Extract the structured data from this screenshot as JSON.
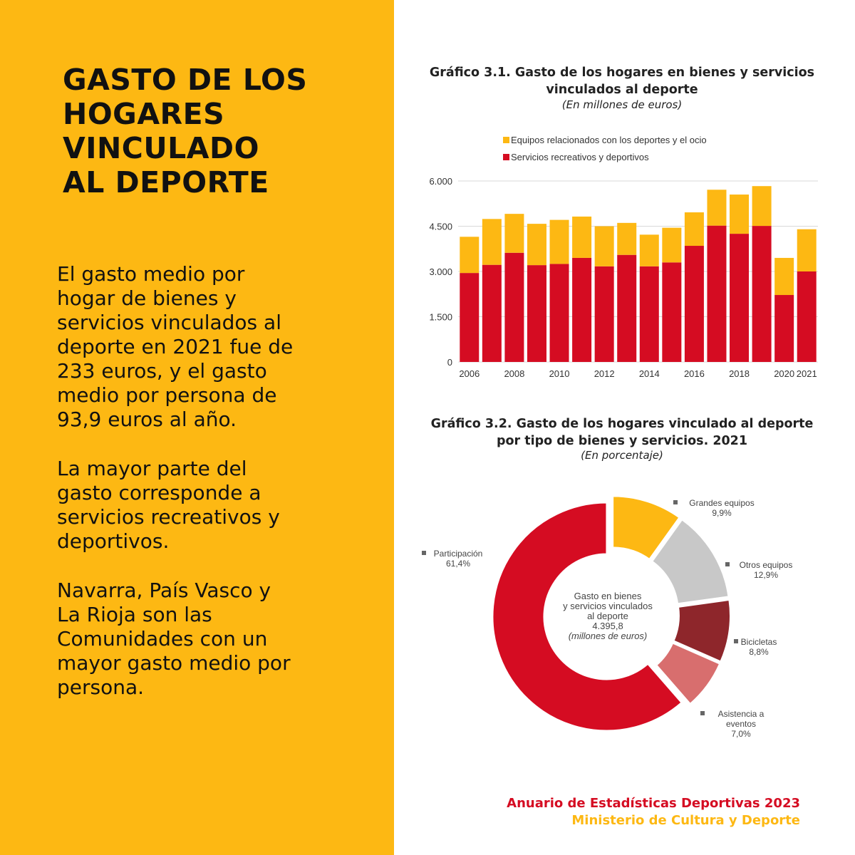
{
  "headline": "GASTO DE LOS\nHOGARES\nVINCULADO\nAL DEPORTE",
  "paragraphs": [
    "El gasto medio por\nhogar de bienes y\nservicios vinculados al\ndeporte en 2021 fue de\n233 euros, y el gasto\nmedio por persona de\n93,9 euros al año.",
    "La mayor parte del\ngasto corresponde a\nservicios recreativos y\ndeportivos.",
    "Navarra, País Vasco y\nLa Rioja son las\nComunidades con un\nmayor gasto medio por\npersona."
  ],
  "footer": {
    "line1": "Anuario de Estadísticas Deportivas 2023",
    "line2": "Ministerio de Cultura y Deporte"
  },
  "colors": {
    "yellow": "#fdb813",
    "red": "#d50c22",
    "grey": "#c8c8c8",
    "darkred": "#8e262b",
    "pink": "#d86e6e"
  },
  "chart_data": [
    {
      "type": "bar",
      "stacked": true,
      "title": "Gráfico 3.1. Gasto de los hogares en bienes y servicios\nvinculados al deporte",
      "subtitle": "(En millones de euros)",
      "legend_position": "top-left",
      "grid": true,
      "ylim": [
        0,
        6000
      ],
      "yticks": [
        "0",
        "1.500",
        "3.000",
        "4.500",
        "6.000"
      ],
      "ytick_values": [
        0,
        1500,
        3000,
        4500,
        6000
      ],
      "categories": [
        "2006",
        "2007",
        "2008",
        "2009",
        "2010",
        "2011",
        "2012",
        "2013",
        "2014",
        "2015",
        "2016",
        "2017",
        "2018",
        "2019",
        "2020",
        "2021"
      ],
      "xtick_labels": [
        "2006",
        "2008",
        "2010",
        "2012",
        "2014",
        "2016",
        "2018",
        "2020",
        "2021"
      ],
      "xtick_indices": [
        0,
        2,
        4,
        6,
        8,
        10,
        12,
        14,
        15
      ],
      "series": [
        {
          "name": "Servicios recreativos y deportivos",
          "color": "#d50c22",
          "values": [
            2950,
            3220,
            3620,
            3210,
            3250,
            3450,
            3170,
            3550,
            3170,
            3300,
            3850,
            4520,
            4250,
            4510,
            2220,
            3000
          ]
        },
        {
          "name": "Equipos relacionados con los deportes y el ocio",
          "color": "#fdb813",
          "values": [
            1200,
            1520,
            1290,
            1370,
            1460,
            1370,
            1330,
            1060,
            1050,
            1150,
            1110,
            1190,
            1300,
            1320,
            1230,
            1400
          ]
        }
      ],
      "legend_order": [
        "Equipos relacionados con los deportes y el ocio",
        "Servicios recreativos y deportivos"
      ]
    },
    {
      "type": "pie",
      "donut": true,
      "title": "Gráfico 3.2. Gasto de los hogares vinculado al deporte\npor tipo de bienes y servicios. 2021",
      "subtitle": "(En porcentaje)",
      "center_label": [
        "Gasto en bienes",
        "y servicios vinculados",
        "al deporte",
        "4.395,8"
      ],
      "center_label_italic": "(millones de euros)",
      "slices": [
        {
          "name": "Grandes equipos",
          "value_label": "9,9%",
          "value": 9.9,
          "color": "#fdb813",
          "label_lines": [
            "Grandes equipos",
            "9,9%"
          ]
        },
        {
          "name": "Otros equipos",
          "value_label": "12,9%",
          "value": 12.9,
          "color": "#c8c8c8",
          "label_lines": [
            "Otros equipos",
            "12,9%"
          ]
        },
        {
          "name": "Bicicletas",
          "value_label": "8,8%",
          "value": 8.8,
          "color": "#8e262b",
          "label_lines": [
            "Bicicletas",
            "8,8%"
          ]
        },
        {
          "name": "Asistencia a eventos",
          "value_label": "7,0%",
          "value": 7.0,
          "color": "#d86e6e",
          "label_lines": [
            "Asistencia a",
            "eventos",
            "7,0%"
          ]
        },
        {
          "name": "Participación",
          "value_label": "61,4%",
          "value": 61.4,
          "color": "#d50c22",
          "label_lines": [
            "Participación",
            "61,4%"
          ]
        }
      ]
    }
  ]
}
